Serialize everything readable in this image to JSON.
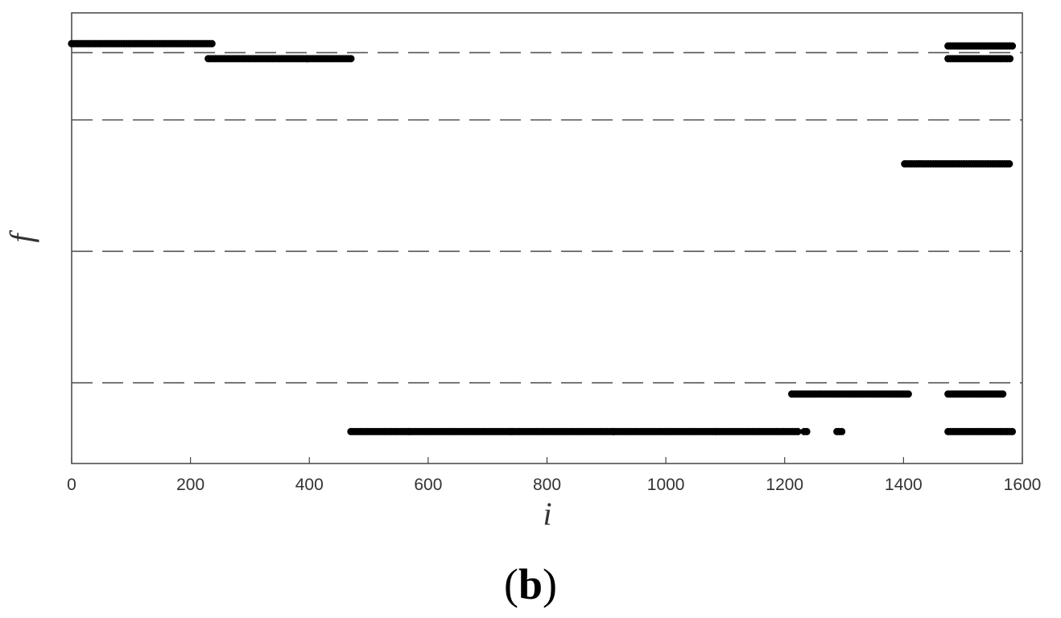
{
  "chart_data": {
    "type": "scatter",
    "xlabel": "i",
    "ylabel": "f",
    "xlim": [
      0,
      1600
    ],
    "xticks": [
      "0",
      "200",
      "400",
      "600",
      "800",
      "1000",
      "1200",
      "1400",
      "1600"
    ],
    "yticks": [],
    "grid": false,
    "panel_label": {
      "open": "(",
      "letter": "b",
      "close": ")"
    },
    "thresholds": [
      0.06,
      1.85,
      5.35,
      8.85
    ],
    "threshold_style": "dashed",
    "point_color": "#000000",
    "segments": [
      {
        "x_start": 0,
        "x_end": 238,
        "y": -0.18
      },
      {
        "x_start": 230,
        "x_end": 470,
        "y": 0.22
      },
      {
        "x_start": 470,
        "x_end": 1222,
        "y": 10.15
      },
      {
        "x_start": 1233,
        "x_end": 1240,
        "y": 10.15
      },
      {
        "x_start": 1288,
        "x_end": 1296,
        "y": 10.15
      },
      {
        "x_start": 1212,
        "x_end": 1408,
        "y": 9.15
      },
      {
        "x_start": 1402,
        "x_end": 1580,
        "y": 3.02
      },
      {
        "x_start": 1475,
        "x_end": 1570,
        "y": 9.15
      },
      {
        "x_start": 1475,
        "x_end": 1585,
        "y": 10.15
      },
      {
        "x_start": 1475,
        "x_end": 1585,
        "y": -0.12
      },
      {
        "x_start": 1475,
        "x_end": 1580,
        "y": 0.22
      }
    ]
  }
}
